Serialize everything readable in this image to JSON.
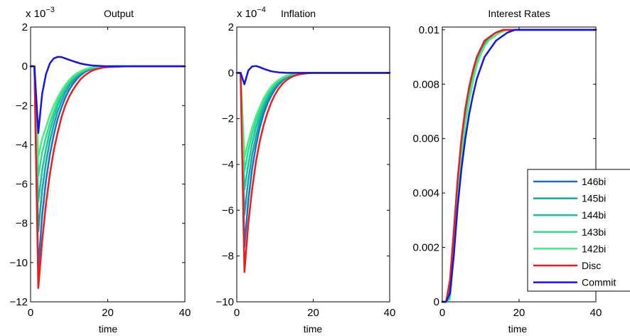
{
  "figure": {
    "series_names": [
      "146bi",
      "145bi",
      "144bi",
      "143bi",
      "142bi",
      "Disc",
      "Commit"
    ],
    "series_colors": [
      "#1f6fc1",
      "#15a3a3",
      "#18c4a0",
      "#2fdc8a",
      "#4aea7e",
      "#ee1c1c",
      "#1414ee"
    ]
  },
  "chart_data": [
    {
      "type": "line",
      "title": "Output",
      "xlabel": "time",
      "ylabel": "",
      "xlim": [
        0,
        40
      ],
      "ylim": [
        -12,
        2
      ],
      "xticks": [
        0,
        20,
        40
      ],
      "yticks": [
        2,
        0,
        -2,
        -4,
        -6,
        -8,
        -10,
        -12
      ],
      "y_scale_label": "x 10",
      "y_scale_exponent": "−3",
      "grid": false,
      "x": [
        0,
        1,
        2,
        3,
        4,
        5,
        6,
        7,
        8,
        9,
        10,
        11,
        12,
        13,
        14,
        15,
        16,
        17,
        18,
        19,
        20,
        22,
        24,
        26,
        28,
        30,
        32,
        34,
        36,
        38,
        40
      ],
      "series": [
        {
          "name": "146bi",
          "values": [
            0,
            0,
            -10.3,
            -7.6,
            -5.8,
            -4.5,
            -3.5,
            -2.7,
            -2.1,
            -1.6,
            -1.2,
            -0.9,
            -0.65,
            -0.45,
            -0.3,
            -0.2,
            -0.12,
            -0.07,
            -0.04,
            -0.02,
            -0.01,
            0,
            0,
            0,
            0,
            0,
            0,
            0,
            0,
            0,
            0
          ]
        },
        {
          "name": "145bi",
          "values": [
            0,
            0,
            -8.4,
            -6.3,
            -4.9,
            -3.8,
            -3.0,
            -2.3,
            -1.8,
            -1.35,
            -1.0,
            -0.75,
            -0.55,
            -0.38,
            -0.25,
            -0.16,
            -0.1,
            -0.06,
            -0.03,
            -0.01,
            0,
            0,
            0,
            0,
            0,
            0,
            0,
            0,
            0,
            0,
            0
          ]
        },
        {
          "name": "144bi",
          "values": [
            0,
            0,
            -6.9,
            -5.3,
            -4.2,
            -3.3,
            -2.6,
            -2.0,
            -1.55,
            -1.15,
            -0.85,
            -0.63,
            -0.46,
            -0.32,
            -0.21,
            -0.13,
            -0.08,
            -0.05,
            -0.02,
            -0.01,
            0,
            0,
            0,
            0,
            0,
            0,
            0,
            0,
            0,
            0,
            0
          ]
        },
        {
          "name": "143bi",
          "values": [
            0,
            0,
            -5.6,
            -4.4,
            -3.6,
            -2.9,
            -2.3,
            -1.8,
            -1.4,
            -1.05,
            -0.77,
            -0.56,
            -0.4,
            -0.28,
            -0.18,
            -0.11,
            -0.07,
            -0.04,
            -0.02,
            -0.01,
            0,
            0,
            0,
            0,
            0,
            0,
            0,
            0,
            0,
            0,
            0
          ]
        },
        {
          "name": "142bi",
          "values": [
            0,
            0,
            -4.6,
            -3.7,
            -3.1,
            -2.5,
            -2.0,
            -1.6,
            -1.25,
            -0.95,
            -0.7,
            -0.5,
            -0.36,
            -0.25,
            -0.16,
            -0.1,
            -0.06,
            -0.03,
            -0.02,
            -0.01,
            0,
            0,
            0,
            0,
            0,
            0,
            0,
            0,
            0,
            0,
            0
          ]
        },
        {
          "name": "Disc",
          "values": [
            0,
            0,
            -11.3,
            -8.9,
            -7.0,
            -5.5,
            -4.3,
            -3.4,
            -2.6,
            -2.0,
            -1.55,
            -1.2,
            -0.9,
            -0.65,
            -0.47,
            -0.33,
            -0.22,
            -0.15,
            -0.1,
            -0.06,
            -0.04,
            -0.02,
            -0.01,
            0,
            0,
            0,
            0,
            0,
            0,
            0,
            0
          ]
        },
        {
          "name": "Commit",
          "values": [
            0,
            0,
            -3.4,
            -1.4,
            -0.4,
            0.15,
            0.4,
            0.48,
            0.47,
            0.4,
            0.33,
            0.26,
            0.2,
            0.14,
            0.1,
            0.07,
            0.04,
            0.03,
            0.02,
            0.01,
            0,
            0,
            0,
            0,
            0,
            0,
            0,
            0,
            0,
            0,
            0
          ]
        }
      ]
    },
    {
      "type": "line",
      "title": "Inflation",
      "xlabel": "time",
      "ylabel": "",
      "xlim": [
        0,
        40
      ],
      "ylim": [
        -10,
        2
      ],
      "xticks": [
        0,
        20,
        40
      ],
      "yticks": [
        2,
        0,
        -2,
        -4,
        -6,
        -8,
        -10
      ],
      "y_scale_label": "x 10",
      "y_scale_exponent": "−4",
      "grid": false,
      "x": [
        0,
        1,
        2,
        3,
        4,
        5,
        6,
        7,
        8,
        9,
        10,
        11,
        12,
        13,
        14,
        15,
        16,
        17,
        18,
        19,
        20,
        22,
        24,
        26,
        28,
        30,
        32,
        34,
        36,
        38,
        40
      ],
      "series": [
        {
          "name": "146bi",
          "values": [
            0,
            0,
            -7.6,
            -5.6,
            -4.2,
            -3.2,
            -2.4,
            -1.8,
            -1.35,
            -1.0,
            -0.72,
            -0.5,
            -0.34,
            -0.22,
            -0.14,
            -0.08,
            -0.05,
            -0.03,
            -0.01,
            0,
            0,
            0,
            0,
            0,
            0,
            0,
            0,
            0,
            0,
            0,
            0
          ]
        },
        {
          "name": "145bi",
          "values": [
            0,
            0,
            -6.2,
            -4.7,
            -3.6,
            -2.8,
            -2.1,
            -1.6,
            -1.2,
            -0.88,
            -0.63,
            -0.44,
            -0.3,
            -0.2,
            -0.12,
            -0.07,
            -0.04,
            -0.02,
            -0.01,
            0,
            0,
            0,
            0,
            0,
            0,
            0,
            0,
            0,
            0,
            0,
            0
          ]
        },
        {
          "name": "144bi",
          "values": [
            0,
            0,
            -5.1,
            -4.0,
            -3.1,
            -2.4,
            -1.85,
            -1.4,
            -1.05,
            -0.77,
            -0.55,
            -0.38,
            -0.26,
            -0.17,
            -0.1,
            -0.06,
            -0.03,
            -0.02,
            -0.01,
            0,
            0,
            0,
            0,
            0,
            0,
            0,
            0,
            0,
            0,
            0,
            0
          ]
        },
        {
          "name": "143bi",
          "values": [
            0,
            0,
            -4.3,
            -3.4,
            -2.7,
            -2.1,
            -1.65,
            -1.25,
            -0.93,
            -0.68,
            -0.48,
            -0.33,
            -0.22,
            -0.14,
            -0.09,
            -0.05,
            -0.03,
            -0.01,
            0,
            0,
            0,
            0,
            0,
            0,
            0,
            0,
            0,
            0,
            0,
            0,
            0
          ]
        },
        {
          "name": "142bi",
          "values": [
            0,
            0,
            -3.7,
            -3.0,
            -2.4,
            -1.9,
            -1.5,
            -1.13,
            -0.84,
            -0.61,
            -0.43,
            -0.3,
            -0.2,
            -0.13,
            -0.08,
            -0.04,
            -0.02,
            -0.01,
            0,
            0,
            0,
            0,
            0,
            0,
            0,
            0,
            0,
            0,
            0,
            0,
            0
          ]
        },
        {
          "name": "Disc",
          "values": [
            0,
            0,
            -8.7,
            -6.6,
            -5.1,
            -3.9,
            -3.0,
            -2.3,
            -1.75,
            -1.3,
            -0.95,
            -0.68,
            -0.47,
            -0.32,
            -0.21,
            -0.13,
            -0.08,
            -0.05,
            -0.03,
            -0.01,
            0,
            0,
            0,
            0,
            0,
            0,
            0,
            0,
            0,
            0,
            0
          ]
        },
        {
          "name": "Commit",
          "values": [
            0,
            0,
            -0.5,
            0.1,
            0.28,
            0.3,
            0.25,
            0.18,
            0.12,
            0.07,
            0.04,
            0.02,
            0.01,
            0,
            0,
            0,
            0,
            0,
            0,
            0,
            0,
            0,
            0,
            0,
            0,
            0,
            0,
            0,
            0,
            0,
            0
          ]
        }
      ]
    },
    {
      "type": "line",
      "title": "Interest Rates",
      "xlabel": "time",
      "ylabel": "",
      "xlim": [
        0,
        40
      ],
      "ylim": [
        0,
        0.0101
      ],
      "xticks": [
        0,
        20,
        40
      ],
      "yticks": [
        "0",
        "0.002",
        "0.004",
        "0.006",
        "0.008",
        "0.01"
      ],
      "ytick_values": [
        0,
        0.002,
        0.004,
        0.006,
        0.008,
        0.01
      ],
      "grid": false,
      "legend_position": "bottom-right",
      "x": [
        0,
        1,
        2,
        3,
        4,
        5,
        6,
        7,
        8,
        9,
        10,
        11,
        12,
        13,
        14,
        15,
        16,
        17,
        18,
        19,
        20,
        21,
        22,
        23,
        24,
        25,
        26,
        28,
        30,
        32,
        34,
        36,
        38,
        40
      ],
      "series": [
        {
          "name": "146bi",
          "values": [
            0,
            0,
            0.0005,
            0.0022,
            0.0042,
            0.0058,
            0.007,
            0.0078,
            0.0085,
            0.009,
            0.0093,
            0.0095,
            0.0097,
            0.0098,
            0.0099,
            0.00995,
            0.01,
            0.01,
            0.01,
            0.01,
            0.01,
            0.01,
            0.01,
            0.01,
            0.01,
            0.01,
            0.01,
            0.01,
            0.01,
            0.01,
            0.01,
            0.01,
            0.01,
            0.01
          ]
        },
        {
          "name": "145bi",
          "values": [
            0,
            0,
            0.0004,
            0.0021,
            0.004,
            0.0056,
            0.0068,
            0.0077,
            0.0084,
            0.0089,
            0.0092,
            0.0095,
            0.0097,
            0.0098,
            0.0099,
            0.00995,
            0.01,
            0.01,
            0.01,
            0.01,
            0.01,
            0.01,
            0.01,
            0.01,
            0.01,
            0.01,
            0.01,
            0.01,
            0.01,
            0.01,
            0.01,
            0.01,
            0.01,
            0.01
          ]
        },
        {
          "name": "144bi",
          "values": [
            0,
            0,
            0.0003,
            0.002,
            0.0039,
            0.0055,
            0.0067,
            0.0076,
            0.0083,
            0.0088,
            0.0092,
            0.0094,
            0.0096,
            0.0098,
            0.0099,
            0.00995,
            0.01,
            0.01,
            0.01,
            0.01,
            0.01,
            0.01,
            0.01,
            0.01,
            0.01,
            0.01,
            0.01,
            0.01,
            0.01,
            0.01,
            0.01,
            0.01,
            0.01,
            0.01
          ]
        },
        {
          "name": "143bi",
          "values": [
            0,
            0,
            0.0002,
            0.0019,
            0.0038,
            0.0054,
            0.0066,
            0.0075,
            0.0082,
            0.0088,
            0.0091,
            0.0094,
            0.0096,
            0.0098,
            0.0099,
            0.00995,
            0.01,
            0.01,
            0.01,
            0.01,
            0.01,
            0.01,
            0.01,
            0.01,
            0.01,
            0.01,
            0.01,
            0.01,
            0.01,
            0.01,
            0.01,
            0.01,
            0.01,
            0.01
          ]
        },
        {
          "name": "142bi",
          "values": [
            0,
            0,
            0.0001,
            0.0018,
            0.0037,
            0.0053,
            0.0065,
            0.0074,
            0.0081,
            0.0087,
            0.0091,
            0.0094,
            0.0096,
            0.0097,
            0.0098,
            0.0099,
            0.00995,
            0.01,
            0.01,
            0.01,
            0.01,
            0.01,
            0.01,
            0.01,
            0.01,
            0.01,
            0.01,
            0.01,
            0.01,
            0.01,
            0.01,
            0.01,
            0.01,
            0.01
          ]
        },
        {
          "name": "Disc",
          "values": [
            0,
            0,
            0.0008,
            0.0026,
            0.0045,
            0.006,
            0.0071,
            0.0079,
            0.0085,
            0.009,
            0.0093,
            0.0096,
            0.0097,
            0.0098,
            0.0099,
            0.00995,
            0.01,
            0.01,
            0.01,
            0.01,
            0.01,
            0.01,
            0.01,
            0.01,
            0.01,
            0.01,
            0.01,
            0.01,
            0.01,
            0.01,
            0.01,
            0.01,
            0.01,
            0.01
          ]
        },
        {
          "name": "Commit",
          "values": [
            0,
            0,
            0.0003,
            0.0017,
            0.0035,
            0.0049,
            0.006,
            0.0069,
            0.0076,
            0.0082,
            0.0086,
            0.009,
            0.0092,
            0.0094,
            0.0096,
            0.0097,
            0.0098,
            0.0099,
            0.00995,
            0.01,
            0.01,
            0.01,
            0.01,
            0.01,
            0.01,
            0.01,
            0.01,
            0.01,
            0.01,
            0.01,
            0.01,
            0.01,
            0.01,
            0.01
          ]
        }
      ]
    }
  ]
}
